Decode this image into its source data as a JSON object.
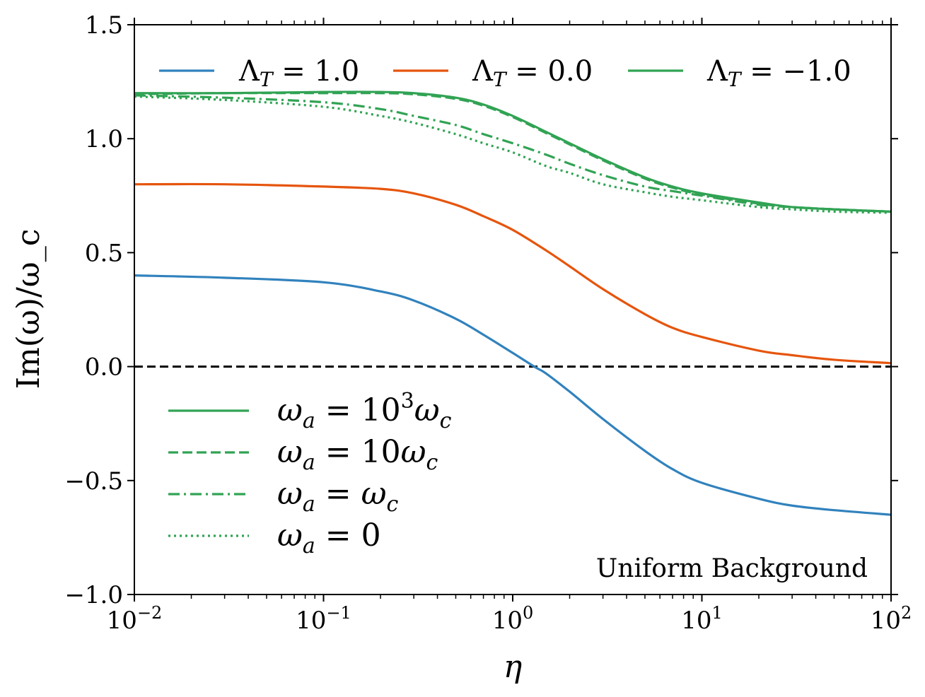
{
  "chart_data": {
    "type": "line",
    "xscale": "log",
    "xlim": [
      0.01,
      100
    ],
    "ylim": [
      -1.0,
      1.5
    ],
    "xlabel": "η",
    "ylabel": "Im(ω)/ω_c",
    "x_ticks": [
      {
        "value": 0.01,
        "base": "10",
        "exp": "−2"
      },
      {
        "value": 0.1,
        "base": "10",
        "exp": "−1"
      },
      {
        "value": 1,
        "base": "10",
        "exp": "0"
      },
      {
        "value": 10,
        "base": "10",
        "exp": "1"
      },
      {
        "value": 100,
        "base": "10",
        "exp": "2"
      }
    ],
    "y_ticks": [
      {
        "value": 1.5,
        "label": "1.5"
      },
      {
        "value": 1.0,
        "label": "1.0"
      },
      {
        "value": 0.5,
        "label": "0.5"
      },
      {
        "value": 0.0,
        "label": "0.0"
      },
      {
        "value": -0.5,
        "label": "−0.5"
      },
      {
        "value": -1.0,
        "label": "−1.0"
      }
    ],
    "reference_line": {
      "y": 0.0,
      "style": "dashed",
      "color": "#000000"
    },
    "annotation": "Uniform Background",
    "colors": {
      "blue": "#3182bd",
      "orange": "#e6550d",
      "green": "#31a354"
    },
    "legend_lambda": [
      {
        "symbol": "Λ",
        "sub": "T",
        "text": " = 1.0",
        "color": "#3182bd"
      },
      {
        "symbol": "Λ",
        "sub": "T",
        "text": " = 0.0",
        "color": "#e6550d"
      },
      {
        "symbol": "Λ",
        "sub": "T",
        "text": " = −1.0",
        "color": "#31a354"
      }
    ],
    "legend_omega": [
      {
        "style": "solid",
        "pre": "ω",
        "sub": "a",
        "eq": " = 10",
        "sup": "3",
        "post": "ω",
        "post_sub": "c"
      },
      {
        "style": "dashed",
        "pre": "ω",
        "sub": "a",
        "eq": " = 10",
        "sup": "",
        "post": "ω",
        "post_sub": "c"
      },
      {
        "style": "dashdot",
        "pre": "ω",
        "sub": "a",
        "eq": " = ",
        "sup": "",
        "post": "ω",
        "post_sub": "c"
      },
      {
        "style": "dotted",
        "pre": "ω",
        "sub": "a",
        "eq": " = 0",
        "sup": "",
        "post": "",
        "post_sub": ""
      }
    ],
    "series": [
      {
        "name": "Λ_T = 1.0",
        "color": "#3182bd",
        "style": "solid",
        "x": [
          0.01,
          0.03,
          0.1,
          0.2,
          0.3,
          0.5,
          0.7,
          1.0,
          1.3,
          1.5,
          2.0,
          3.0,
          5.0,
          7.0,
          10,
          20,
          30,
          50,
          100
        ],
        "y": [
          0.4,
          0.39,
          0.37,
          0.33,
          0.29,
          0.21,
          0.14,
          0.06,
          0.0,
          -0.03,
          -0.11,
          -0.23,
          -0.37,
          -0.45,
          -0.51,
          -0.58,
          -0.61,
          -0.63,
          -0.65
        ]
      },
      {
        "name": "Λ_T = 0.0",
        "color": "#e6550d",
        "style": "solid",
        "x": [
          0.01,
          0.03,
          0.1,
          0.2,
          0.3,
          0.5,
          0.7,
          1.0,
          1.5,
          2.0,
          3.0,
          5.0,
          7.0,
          10,
          20,
          30,
          50,
          100
        ],
        "y": [
          0.8,
          0.8,
          0.79,
          0.78,
          0.76,
          0.71,
          0.66,
          0.6,
          0.51,
          0.44,
          0.34,
          0.23,
          0.17,
          0.13,
          0.07,
          0.05,
          0.03,
          0.015
        ]
      },
      {
        "name": "Λ_T = −1.0, ω_a = 10^3 ω_c",
        "color": "#31a354",
        "style": "solid",
        "x": [
          0.01,
          0.03,
          0.1,
          0.2,
          0.3,
          0.5,
          0.7,
          1.0,
          1.5,
          2.0,
          3.0,
          5.0,
          7.0,
          10,
          20,
          30,
          50,
          100
        ],
        "y": [
          1.2,
          1.2,
          1.205,
          1.205,
          1.2,
          1.18,
          1.15,
          1.1,
          1.03,
          0.98,
          0.91,
          0.83,
          0.79,
          0.76,
          0.72,
          0.7,
          0.69,
          0.68
        ]
      },
      {
        "name": "Λ_T = −1.0, ω_a = 10 ω_c",
        "color": "#31a354",
        "style": "dashed",
        "x": [
          0.01,
          0.03,
          0.1,
          0.2,
          0.3,
          0.5,
          0.7,
          1.0,
          1.5,
          2.0,
          3.0,
          5.0,
          7.0,
          10,
          20,
          30,
          50,
          100
        ],
        "y": [
          1.195,
          1.2,
          1.2,
          1.2,
          1.195,
          1.175,
          1.145,
          1.095,
          1.025,
          0.975,
          0.905,
          0.825,
          0.785,
          0.755,
          0.715,
          0.7,
          0.69,
          0.68
        ]
      },
      {
        "name": "Λ_T = −1.0, ω_a = ω_c",
        "color": "#31a354",
        "style": "dashdot",
        "x": [
          0.01,
          0.03,
          0.1,
          0.2,
          0.3,
          0.5,
          0.7,
          1.0,
          1.5,
          2.0,
          3.0,
          5.0,
          7.0,
          10,
          20,
          30,
          50,
          100
        ],
        "y": [
          1.19,
          1.18,
          1.16,
          1.13,
          1.1,
          1.06,
          1.02,
          0.98,
          0.93,
          0.89,
          0.84,
          0.79,
          0.77,
          0.75,
          0.71,
          0.7,
          0.69,
          0.68
        ]
      },
      {
        "name": "Λ_T = −1.0, ω_a = 0",
        "color": "#31a354",
        "style": "dotted",
        "x": [
          0.01,
          0.03,
          0.1,
          0.2,
          0.3,
          0.5,
          0.7,
          1.0,
          1.5,
          2.0,
          3.0,
          5.0,
          7.0,
          10,
          20,
          30,
          50,
          100
        ],
        "y": [
          1.185,
          1.17,
          1.14,
          1.1,
          1.07,
          1.02,
          0.98,
          0.94,
          0.88,
          0.85,
          0.8,
          0.765,
          0.745,
          0.73,
          0.7,
          0.69,
          0.68,
          0.675
        ]
      }
    ]
  }
}
